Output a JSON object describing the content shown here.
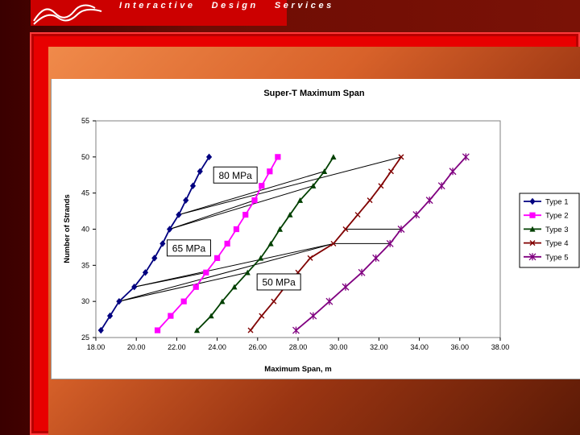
{
  "header": {
    "company": "Interactive   Design   Services"
  },
  "colors": {
    "frame": "#e80000",
    "logo_bg": "#cc0000"
  },
  "chart_data": {
    "type": "line",
    "title": "Super-T Maximum Span",
    "xlabel": "Maximum Span, m",
    "ylabel": "Number of Strands",
    "xlim": [
      18,
      38
    ],
    "ylim": [
      25,
      55
    ],
    "xticks": [
      "18.00",
      "20.00",
      "22.00",
      "24.00",
      "26.00",
      "28.00",
      "30.00",
      "32.00",
      "34.00",
      "36.00",
      "38.00"
    ],
    "yticks": [
      "25",
      "30",
      "35",
      "40",
      "45",
      "50",
      "55"
    ],
    "grid": false,
    "legend_position": "right",
    "series": [
      {
        "name": "Type 1",
        "color": "#000080",
        "marker": "diamond",
        "points": [
          [
            18.25,
            26
          ],
          [
            18.7,
            28
          ],
          [
            19.15,
            30
          ],
          [
            19.9,
            32
          ],
          [
            20.45,
            34
          ],
          [
            20.9,
            36
          ],
          [
            21.3,
            38
          ],
          [
            21.65,
            40
          ],
          [
            22.1,
            42
          ],
          [
            22.45,
            44
          ],
          [
            22.8,
            46
          ],
          [
            23.15,
            48
          ],
          [
            23.6,
            50
          ]
        ]
      },
      {
        "name": "Type 2",
        "color": "#ff00ff",
        "marker": "square",
        "points": [
          [
            21.05,
            26
          ],
          [
            21.7,
            28
          ],
          [
            22.35,
            30
          ],
          [
            22.95,
            32
          ],
          [
            23.45,
            34
          ],
          [
            24.0,
            36
          ],
          [
            24.5,
            38
          ],
          [
            24.95,
            40
          ],
          [
            25.4,
            42
          ],
          [
            25.85,
            44
          ],
          [
            26.2,
            46
          ],
          [
            26.6,
            48
          ],
          [
            27.0,
            50
          ]
        ]
      },
      {
        "name": "Type 3",
        "color": "#004000",
        "marker": "triangle",
        "points": [
          [
            23.0,
            26
          ],
          [
            23.7,
            28
          ],
          [
            24.25,
            30
          ],
          [
            24.85,
            32
          ],
          [
            25.5,
            34
          ],
          [
            26.15,
            36
          ],
          [
            26.65,
            38
          ],
          [
            27.1,
            40
          ],
          [
            27.6,
            42
          ],
          [
            28.1,
            44
          ],
          [
            28.75,
            46
          ],
          [
            29.3,
            48
          ],
          [
            29.75,
            50
          ]
        ]
      },
      {
        "name": "Type 4",
        "color": "#800000",
        "marker": "x",
        "points": [
          [
            25.65,
            26
          ],
          [
            26.2,
            28
          ],
          [
            26.8,
            30
          ],
          [
            27.35,
            32
          ],
          [
            28.0,
            34
          ],
          [
            28.6,
            36
          ],
          [
            29.75,
            38
          ],
          [
            30.35,
            40
          ],
          [
            30.95,
            42
          ],
          [
            31.55,
            44
          ],
          [
            32.1,
            46
          ],
          [
            32.6,
            48
          ],
          [
            33.1,
            50
          ]
        ]
      },
      {
        "name": "Type 5",
        "color": "#800080",
        "marker": "star",
        "points": [
          [
            27.9,
            26
          ],
          [
            28.75,
            28
          ],
          [
            29.55,
            30
          ],
          [
            30.35,
            32
          ],
          [
            31.15,
            34
          ],
          [
            31.85,
            36
          ],
          [
            32.55,
            38
          ],
          [
            33.1,
            40
          ],
          [
            33.85,
            42
          ],
          [
            34.5,
            44
          ],
          [
            35.1,
            46
          ],
          [
            35.65,
            48
          ],
          [
            36.3,
            50
          ]
        ]
      }
    ],
    "connectors": [
      [
        [
          22.1,
          42
        ],
        [
          29.3,
          48
        ]
      ],
      [
        [
          22.1,
          42
        ],
        [
          33.1,
          50
        ]
      ],
      [
        [
          21.65,
          40
        ],
        [
          25.85,
          44
        ]
      ],
      [
        [
          21.65,
          40
        ],
        [
          28.75,
          46
        ]
      ],
      [
        [
          19.9,
          32
        ],
        [
          23.45,
          34
        ]
      ],
      [
        [
          19.9,
          32
        ],
        [
          29.75,
          38
        ]
      ],
      [
        [
          19.15,
          30
        ],
        [
          25.5,
          34
        ]
      ],
      [
        [
          19.15,
          30
        ],
        [
          29.75,
          38
        ]
      ],
      [
        [
          29.75,
          38
        ],
        [
          32.55,
          38
        ]
      ],
      [
        [
          30.35,
          40
        ],
        [
          33.1,
          40
        ]
      ]
    ],
    "annotations": [
      {
        "text": "80 MPa",
        "x": 24.9,
        "y": 47.5
      },
      {
        "text": "65 MPa",
        "x": 22.6,
        "y": 37.4
      },
      {
        "text": "50 MPa",
        "x": 27.05,
        "y": 32.7
      }
    ]
  }
}
